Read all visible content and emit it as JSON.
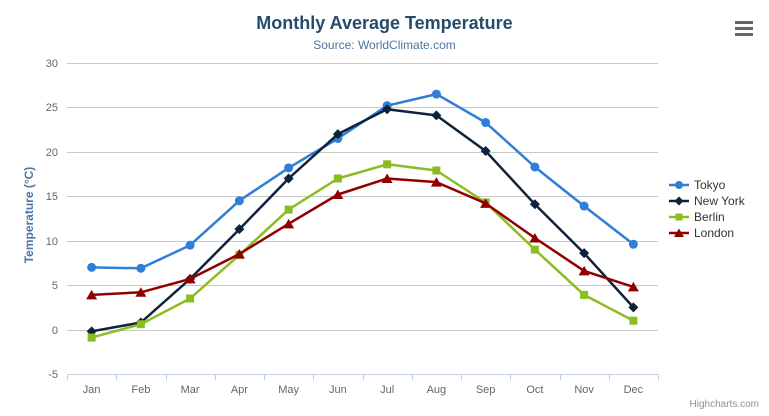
{
  "credits_label": "Highcharts.com",
  "icons": {
    "context_menu": "hamburger-icon"
  },
  "colors": {
    "background": "#ffffff",
    "title": "#274b6d",
    "subtitle": "#4d759e",
    "axis_title": "#4d759e",
    "tick_label": "#666666",
    "gridline": "#c8c8c8",
    "axis_line": "#c0d0e0",
    "legend_text": "#333333",
    "credits": "#909090",
    "menu_icon": "#666666"
  },
  "chart_data": {
    "type": "line",
    "title": "Monthly Average Temperature",
    "subtitle": "Source: WorldClimate.com",
    "xlabel": "",
    "ylabel": "Temperature (°C)",
    "ylim": [
      -5,
      30
    ],
    "ytick_interval": 5,
    "grid": true,
    "legend_position": "right",
    "categories": [
      "Jan",
      "Feb",
      "Mar",
      "Apr",
      "May",
      "Jun",
      "Jul",
      "Aug",
      "Sep",
      "Oct",
      "Nov",
      "Dec"
    ],
    "series": [
      {
        "name": "Tokyo",
        "color": "#2f7ed8",
        "marker": "circle",
        "values": [
          7.0,
          6.9,
          9.5,
          14.5,
          18.2,
          21.5,
          25.2,
          26.5,
          23.3,
          18.3,
          13.9,
          9.6
        ]
      },
      {
        "name": "New York",
        "color": "#0d233a",
        "marker": "diamond",
        "values": [
          -0.2,
          0.8,
          5.7,
          11.3,
          17.0,
          22.0,
          24.8,
          24.1,
          20.1,
          14.1,
          8.6,
          2.5
        ]
      },
      {
        "name": "Berlin",
        "color": "#8bbc21",
        "marker": "square",
        "values": [
          -0.9,
          0.6,
          3.5,
          8.4,
          13.5,
          17.0,
          18.6,
          17.9,
          14.3,
          9.0,
          3.9,
          1.0
        ]
      },
      {
        "name": "London",
        "color": "#910000",
        "marker": "triangle",
        "values": [
          3.9,
          4.2,
          5.7,
          8.5,
          11.9,
          15.2,
          17.0,
          16.6,
          14.2,
          10.3,
          6.6,
          4.8
        ]
      }
    ]
  }
}
